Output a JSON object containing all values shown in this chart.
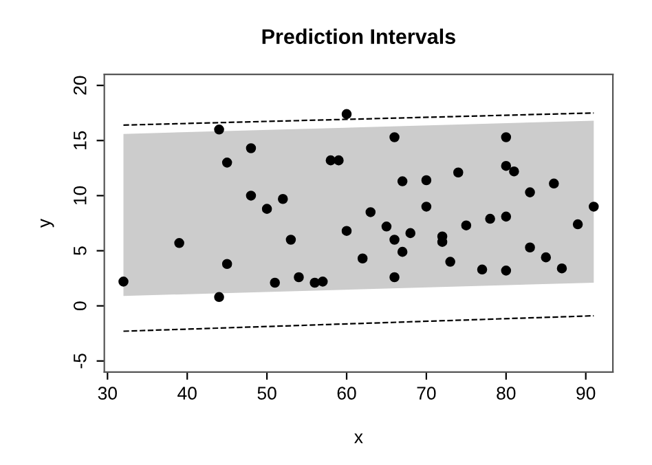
{
  "chart_data": {
    "type": "scatter",
    "title": "Prediction Intervals",
    "xlabel": "x",
    "ylabel": "y",
    "xlim": [
      29.6,
      93.4
    ],
    "ylim": [
      -6,
      21
    ],
    "xticks": [
      30,
      40,
      50,
      60,
      70,
      80,
      90
    ],
    "yticks": [
      -5,
      0,
      5,
      10,
      15,
      20
    ],
    "grid": false,
    "legend": false,
    "series": [
      {
        "type": "area",
        "color": "#cccccc",
        "x": [
          32,
          91
        ],
        "values": [
          null,
          null
        ],
        "lower": [
          0.9,
          2.1
        ],
        "upper": [
          15.6,
          16.8
        ]
      },
      {
        "type": "line",
        "color": "#000000",
        "line_style": "dashed",
        "marker": "none",
        "x": [
          32,
          91
        ],
        "values": [
          16.4,
          17.5
        ]
      },
      {
        "type": "line",
        "color": "#000000",
        "line_style": "dashed",
        "marker": "none",
        "x": [
          32,
          91
        ],
        "values": [
          -2.3,
          -0.9
        ]
      },
      {
        "color": "#000000",
        "marker": "circle",
        "x": [
          32,
          39,
          44,
          44,
          45,
          45,
          48,
          48,
          50,
          52,
          53,
          51,
          54,
          56,
          57,
          58,
          59,
          60,
          60,
          66,
          67,
          70,
          74,
          63,
          70,
          65,
          66,
          68,
          67,
          72,
          72,
          62,
          75,
          73,
          66,
          77,
          78,
          80,
          80,
          81,
          80,
          80,
          83,
          83,
          86,
          85,
          87,
          89,
          91
        ],
        "values": [
          2.2,
          5.7,
          16.0,
          0.8,
          13.0,
          3.8,
          14.3,
          10.0,
          8.8,
          9.7,
          6.0,
          2.1,
          2.6,
          2.1,
          2.2,
          13.2,
          13.2,
          17.4,
          6.8,
          15.3,
          11.3,
          11.4,
          12.1,
          8.5,
          9.0,
          7.2,
          6.0,
          6.6,
          4.9,
          6.3,
          5.8,
          4.3,
          7.3,
          4.0,
          2.6,
          3.3,
          7.9,
          15.3,
          12.7,
          12.2,
          8.1,
          3.2,
          10.3,
          5.3,
          11.1,
          4.4,
          3.4,
          7.4,
          9.0
        ]
      }
    ]
  }
}
